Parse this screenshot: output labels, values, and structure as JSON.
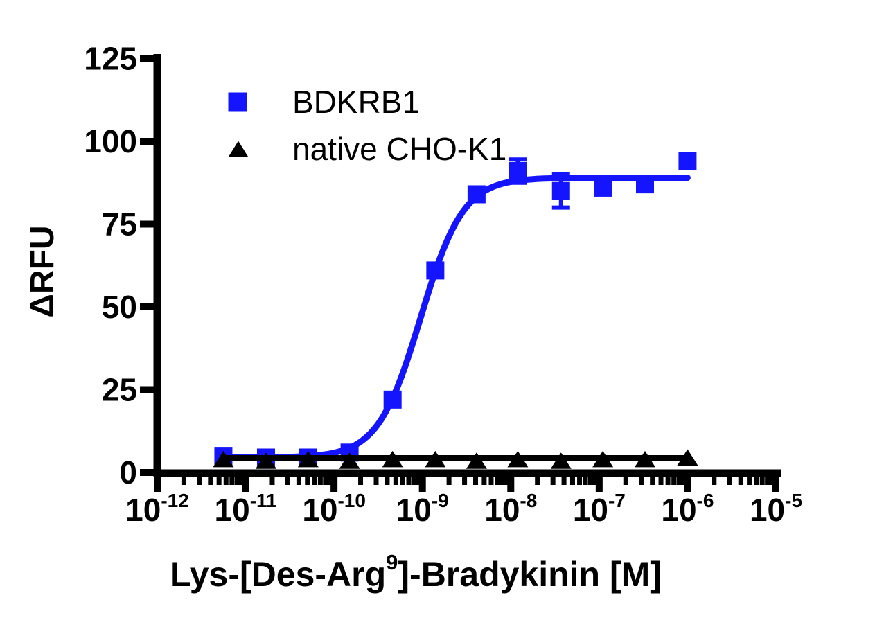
{
  "chart_data": {
    "type": "scatter",
    "subtype": "dose-response-log",
    "title": "",
    "ylabel": "ΔRFU",
    "xlabel": {
      "pre": "Lys-[Des-Arg",
      "sup": "9",
      "post": "]-Bradykinin [M]"
    },
    "x_scale": "log10",
    "x_unit": "M",
    "xlim_exponents": [
      -12,
      -5
    ],
    "ylim": [
      0,
      125
    ],
    "grid": false,
    "legend_position": "top-left-inside",
    "y_ticks": [
      0,
      25,
      50,
      75,
      100,
      125
    ],
    "x_ticks": [
      {
        "base": "10",
        "exp": "-12"
      },
      {
        "base": "10",
        "exp": "-11"
      },
      {
        "base": "10",
        "exp": "-10"
      },
      {
        "base": "10",
        "exp": "-9"
      },
      {
        "base": "10",
        "exp": "-8"
      },
      {
        "base": "10",
        "exp": "-7"
      },
      {
        "base": "10",
        "exp": "-6"
      },
      {
        "base": "10",
        "exp": "-5"
      }
    ],
    "x_values_M": [
      5.6e-12,
      1.7e-11,
      5.1e-11,
      1.5e-10,
      4.6e-10,
      1.4e-09,
      4.1e-09,
      1.2e-08,
      3.7e-08,
      1.1e-07,
      3.3e-07,
      1e-06
    ],
    "series": [
      {
        "name": "BDKRB1",
        "marker": "square",
        "color": "#1414FF",
        "y": [
          5,
          4.5,
          4.5,
          6,
          22,
          61,
          84,
          91,
          85,
          86,
          87,
          94
        ],
        "sem": [
          0,
          0,
          0,
          0,
          0,
          0,
          0,
          3.5,
          5,
          0,
          0,
          0
        ],
        "fit": {
          "model": "sigmoidal",
          "bottom": 4.5,
          "top": 89,
          "logEC50": -9.02,
          "hill": 1.8
        }
      },
      {
        "name": "native CHO-K1",
        "marker": "triangle",
        "color": "#000000",
        "y": [
          4,
          3.5,
          4,
          3.5,
          4,
          4,
          3.5,
          4,
          3.5,
          4,
          4,
          4.5
        ],
        "sem": [
          0,
          0,
          0,
          0,
          0,
          0,
          0,
          0,
          0,
          0,
          0,
          0
        ],
        "fit": {
          "model": "flat",
          "value": 4.3
        }
      }
    ]
  }
}
